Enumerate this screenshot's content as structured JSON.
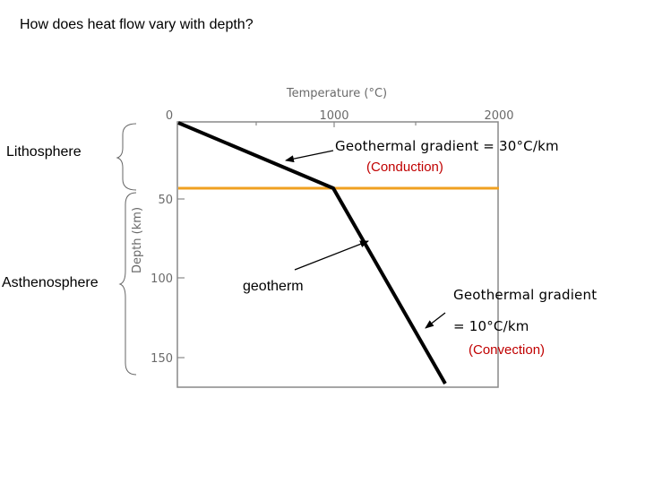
{
  "title": "How does heat flow vary with depth?",
  "layers": {
    "lithosphere": "Lithosphere",
    "asthenosphere": "Asthenosphere"
  },
  "axes": {
    "x_title": "Temperature (°C)",
    "y_title": "Depth (km)",
    "x_ticks": [
      "0",
      "1000",
      "2000"
    ],
    "y_ticks": [
      "50",
      "100",
      "150"
    ]
  },
  "annotations": {
    "conduction_gradient": "Geothermal gradient = 30°C/km",
    "conduction_mode": "(Conduction)",
    "geotherm": "geotherm",
    "convection_gradient_line1": "Geothermal gradient",
    "convection_gradient_line2": "= 10°C/km",
    "convection_mode": "(Convection)"
  },
  "colors": {
    "boundary_line": "#f0a020",
    "convection_text": "#c00000",
    "geotherm_line": "#000000"
  }
}
